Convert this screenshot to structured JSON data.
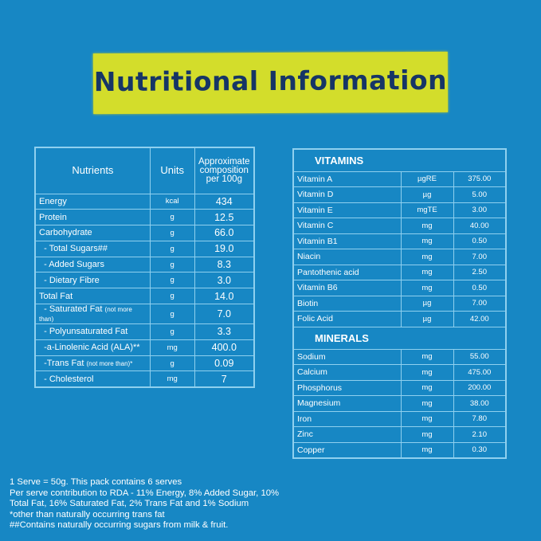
{
  "title": "Nutritional Information",
  "colors": {
    "background": "#1787c4",
    "banner": "#d3dd2b",
    "title": "#163566",
    "grid": "#8fd0ef"
  },
  "nutrients": {
    "headers": [
      "Nutrients",
      "Units",
      "Approximate composition per 100g"
    ],
    "rows": [
      {
        "name": "Energy",
        "note": "",
        "unit": "kcal",
        "value": "434"
      },
      {
        "name": "Protein",
        "note": "",
        "unit": "g",
        "value": "12.5"
      },
      {
        "name": "Carbohydrate",
        "note": "",
        "unit": "g",
        "value": "66.0"
      },
      {
        "name": "  - Total Sugars##",
        "note": "",
        "unit": "g",
        "value": "19.0"
      },
      {
        "name": "  - Added Sugars",
        "note": "",
        "unit": "g",
        "value": "8.3"
      },
      {
        "name": "  - Dietary Fibre",
        "note": "",
        "unit": "g",
        "value": "3.0"
      },
      {
        "name": "Total Fat",
        "note": "",
        "unit": "g",
        "value": "14.0"
      },
      {
        "name": "  - Saturated Fat ",
        "note": "(not more than)",
        "unit": "g",
        "value": "7.0"
      },
      {
        "name": "  - Polyunsaturated Fat",
        "note": "",
        "unit": "g",
        "value": "3.3"
      },
      {
        "name": "  -a-Linolenic Acid (ALA)**",
        "note": "",
        "unit": "mg",
        "value": "400.0"
      },
      {
        "name": "  -Trans Fat ",
        "note": "(not more than)*",
        "unit": "g",
        "value": "0.09"
      },
      {
        "name": "  - Cholesterol",
        "note": "",
        "unit": "mg",
        "value": "7"
      }
    ]
  },
  "vitamins": {
    "heading": "VITAMINS",
    "rows": [
      {
        "name": "Vitamin  A",
        "unit": "µgRE",
        "value": "375.00"
      },
      {
        "name": "Vitamin D",
        "unit": "µg",
        "value": "5.00"
      },
      {
        "name": "Vitamin E",
        "unit": "mgTE",
        "value": "3.00"
      },
      {
        "name": "Vitamin C",
        "unit": "mg",
        "value": "40.00"
      },
      {
        "name": "Vitamin B1",
        "unit": "mg",
        "value": "0.50"
      },
      {
        "name": "Niacin",
        "unit": "mg",
        "value": "7.00"
      },
      {
        "name": "Pantothenic acid",
        "unit": "mg",
        "value": "2.50"
      },
      {
        "name": "Vitamin B6",
        "unit": "mg",
        "value": "0.50"
      },
      {
        "name": "Biotin",
        "unit": "µg",
        "value": "7.00"
      },
      {
        "name": "Folic Acid",
        "unit": "µg",
        "value": "42.00"
      }
    ]
  },
  "minerals": {
    "heading": "MINERALS",
    "rows": [
      {
        "name": "Sodium",
        "unit": "mg",
        "value": "55.00"
      },
      {
        "name": "Calcium",
        "unit": "mg",
        "value": "475.00"
      },
      {
        "name": "Phosphorus",
        "unit": "mg",
        "value": "200.00"
      },
      {
        "name": "Magnesium",
        "unit": "mg",
        "value": "38.00"
      },
      {
        "name": "Iron",
        "unit": "mg",
        "value": "7.80"
      },
      {
        "name": "Zinc",
        "unit": "mg",
        "value": "2.10"
      },
      {
        "name": "Copper",
        "unit": "mg",
        "value": "0.30"
      }
    ]
  },
  "footnotes": [
    "1 Serve = 50g. This pack contains 6 serves",
    "Per serve contribution to RDA - 11% Energy, 8% Added Sugar, 10%",
    "Total Fat, 16% Saturated Fat, 2% Trans Fat and 1% Sodium",
    "*other than naturally occurring trans fat",
    "##Contains naturally occurring sugars from milk & fruit."
  ]
}
